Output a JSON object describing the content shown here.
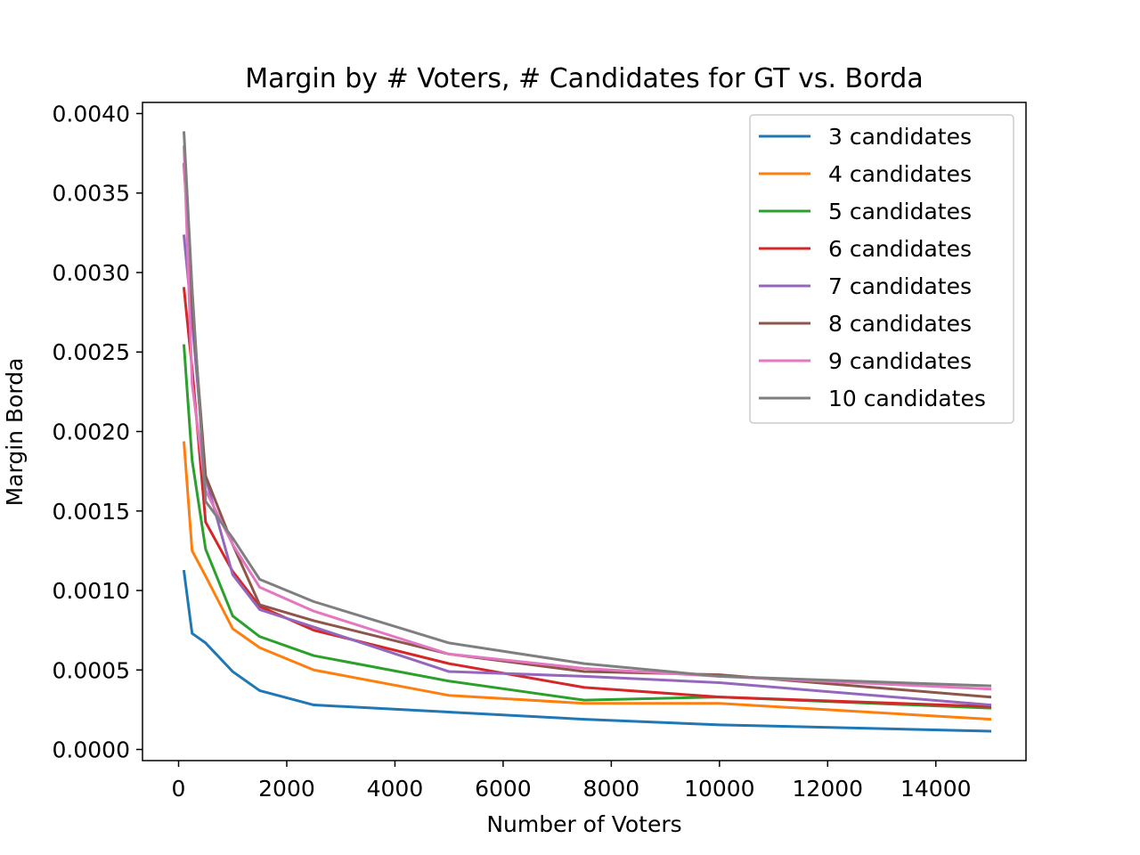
{
  "chart_data": {
    "type": "line",
    "title": "Margin by # Voters, # Candidates for GT vs. Borda",
    "xlabel": "Number of Voters",
    "ylabel": "Margin Borda",
    "xlim": [
      -667,
      15667
    ],
    "ylim": [
      -7e-05,
      0.00407
    ],
    "xticks": [
      0,
      2000,
      4000,
      6000,
      8000,
      10000,
      12000,
      14000
    ],
    "xtick_labels": [
      "0",
      "2000",
      "4000",
      "6000",
      "8000",
      "10000",
      "12000",
      "14000"
    ],
    "yticks": [
      0,
      0.0005,
      0.001,
      0.0015,
      0.002,
      0.0025,
      0.003,
      0.0035,
      0.004
    ],
    "ytick_labels": [
      "0.0000",
      "0.0005",
      "0.0010",
      "0.0015",
      "0.0020",
      "0.0025",
      "0.0030",
      "0.0035",
      "0.0040"
    ],
    "grid": false,
    "legend_position": "top-right",
    "x": [
      100,
      250,
      500,
      1000,
      1500,
      2500,
      5000,
      7500,
      10000,
      15000
    ],
    "series": [
      {
        "name": "3 candidates",
        "color": "#1f77b4",
        "values": [
          0.00112,
          0.00073,
          0.00067,
          0.00049,
          0.00037,
          0.00028,
          0.000235,
          0.00019,
          0.000155,
          0.000115
        ]
      },
      {
        "name": "4 candidates",
        "color": "#ff7f0e",
        "values": [
          0.00193,
          0.00125,
          0.00109,
          0.00076,
          0.00064,
          0.0005,
          0.00034,
          0.00029,
          0.00029,
          0.00019
        ]
      },
      {
        "name": "5 candidates",
        "color": "#2ca02c",
        "values": [
          0.00254,
          0.00182,
          0.00126,
          0.00084,
          0.00071,
          0.00059,
          0.00043,
          0.00031,
          0.00033,
          0.00026
        ]
      },
      {
        "name": "6 candidates",
        "color": "#d62728",
        "values": [
          0.0029,
          0.0024,
          0.00143,
          0.00112,
          0.0009,
          0.00075,
          0.00054,
          0.00039,
          0.00033,
          0.00027
        ]
      },
      {
        "name": "7 candidates",
        "color": "#9467bd",
        "values": [
          0.00323,
          0.0027,
          0.00171,
          0.0011,
          0.00088,
          0.00077,
          0.00049,
          0.00046,
          0.00042,
          0.00028
        ]
      },
      {
        "name": "8 candidates",
        "color": "#8c564b",
        "values": [
          0.00368,
          0.0028,
          0.00172,
          0.00129,
          0.00091,
          0.00081,
          0.0006,
          0.00049,
          0.00047,
          0.00033
        ]
      },
      {
        "name": "9 candidates",
        "color": "#e377c2",
        "values": [
          0.00379,
          0.0023,
          0.00163,
          0.00129,
          0.00102,
          0.00087,
          0.0006,
          0.00051,
          0.00046,
          0.00038
        ]
      },
      {
        "name": "10 candidates",
        "color": "#7f7f7f",
        "values": [
          0.00388,
          0.0029,
          0.00156,
          0.00133,
          0.00107,
          0.00093,
          0.00067,
          0.00054,
          0.00046,
          0.0004
        ]
      }
    ]
  }
}
